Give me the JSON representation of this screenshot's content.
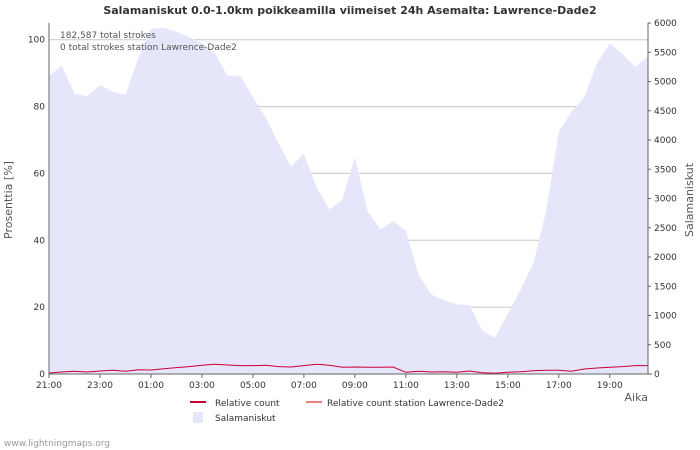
{
  "chart_data": {
    "type": "area",
    "title": "Salamaniskut 0.0-1.0km poikkeamilla viimeiset 24h Asemalta: Lawrence-Dade2",
    "xlabel": "Aika",
    "ylabel_left": "Prosenttia  [%]",
    "ylabel_right": "Salamaniskut",
    "y_left_ticks": [
      "0",
      "20",
      "40",
      "60",
      "80",
      "100"
    ],
    "y_right_ticks": [
      "0",
      "500",
      "1000",
      "1500",
      "2000",
      "2500",
      "3000",
      "3500",
      "4000",
      "4500",
      "5000",
      "5500",
      "6000"
    ],
    "x_ticks": [
      "21:00",
      "23:00",
      "01:00",
      "03:00",
      "05:00",
      "07:00",
      "09:00",
      "11:00",
      "13:00",
      "15:00",
      "17:00",
      "19:00"
    ],
    "ylim_left": [
      0,
      105
    ],
    "ylim_right": [
      0,
      6000
    ],
    "annotations": [
      "182,587 total strokes",
      "0 total strokes station Lawrence-Dade2"
    ],
    "hours_from_21": [
      0,
      0.5,
      1,
      1.5,
      2,
      2.5,
      3,
      3.5,
      4,
      4.5,
      5,
      5.5,
      6,
      6.5,
      7,
      7.5,
      8,
      8.5,
      9,
      9.5,
      10,
      10.5,
      11,
      11.5,
      12,
      12.5,
      13,
      13.5,
      14,
      14.5,
      15,
      15.5,
      16,
      16.5,
      17,
      17.5,
      18,
      18.5,
      19,
      19.5,
      20,
      20.5,
      21,
      21.5,
      22,
      22.5,
      23,
      23.5
    ],
    "series": [
      {
        "name": "Salamaniskut",
        "axis": "right",
        "color": "#e6e6fa",
        "values": [
          5100,
          5270,
          4790,
          4750,
          4940,
          4820,
          4770,
          5400,
          5900,
          5920,
          5850,
          5760,
          5650,
          5490,
          5100,
          5100,
          4730,
          4380,
          3950,
          3540,
          3760,
          3190,
          2810,
          2970,
          3700,
          2780,
          2470,
          2610,
          2450,
          1690,
          1360,
          1260,
          1190,
          1180,
          740,
          620,
          1030,
          1440,
          1890,
          2770,
          4140,
          4480,
          4730,
          5310,
          5650,
          5470,
          5250,
          5430
        ]
      },
      {
        "name": "Relative count",
        "axis": "left",
        "color": "#cc0033",
        "values": [
          0.3,
          0.6,
          0.8,
          0.6,
          0.9,
          1.1,
          0.8,
          1.3,
          1.2,
          1.6,
          1.9,
          2.2,
          2.6,
          2.9,
          2.7,
          2.5,
          2.5,
          2.6,
          2.2,
          2.1,
          2.5,
          2.9,
          2.6,
          2.0,
          2.1,
          2.0,
          2.0,
          2.1,
          0.5,
          0.8,
          0.6,
          0.7,
          0.5,
          0.9,
          0.4,
          0.2,
          0.5,
          0.7,
          1.0,
          1.1,
          1.1,
          0.8,
          1.5,
          1.8,
          2.0,
          2.2,
          2.5,
          2.5
        ]
      },
      {
        "name": "Relative count station Lawrence-Dade2",
        "axis": "left",
        "color": "#f08080",
        "values": []
      }
    ],
    "legend": [
      "Relative count",
      "Relative count station Lawrence-Dade2",
      "Salamaniskut"
    ]
  },
  "footer": {
    "watermark": "www.lightningmaps.org"
  }
}
